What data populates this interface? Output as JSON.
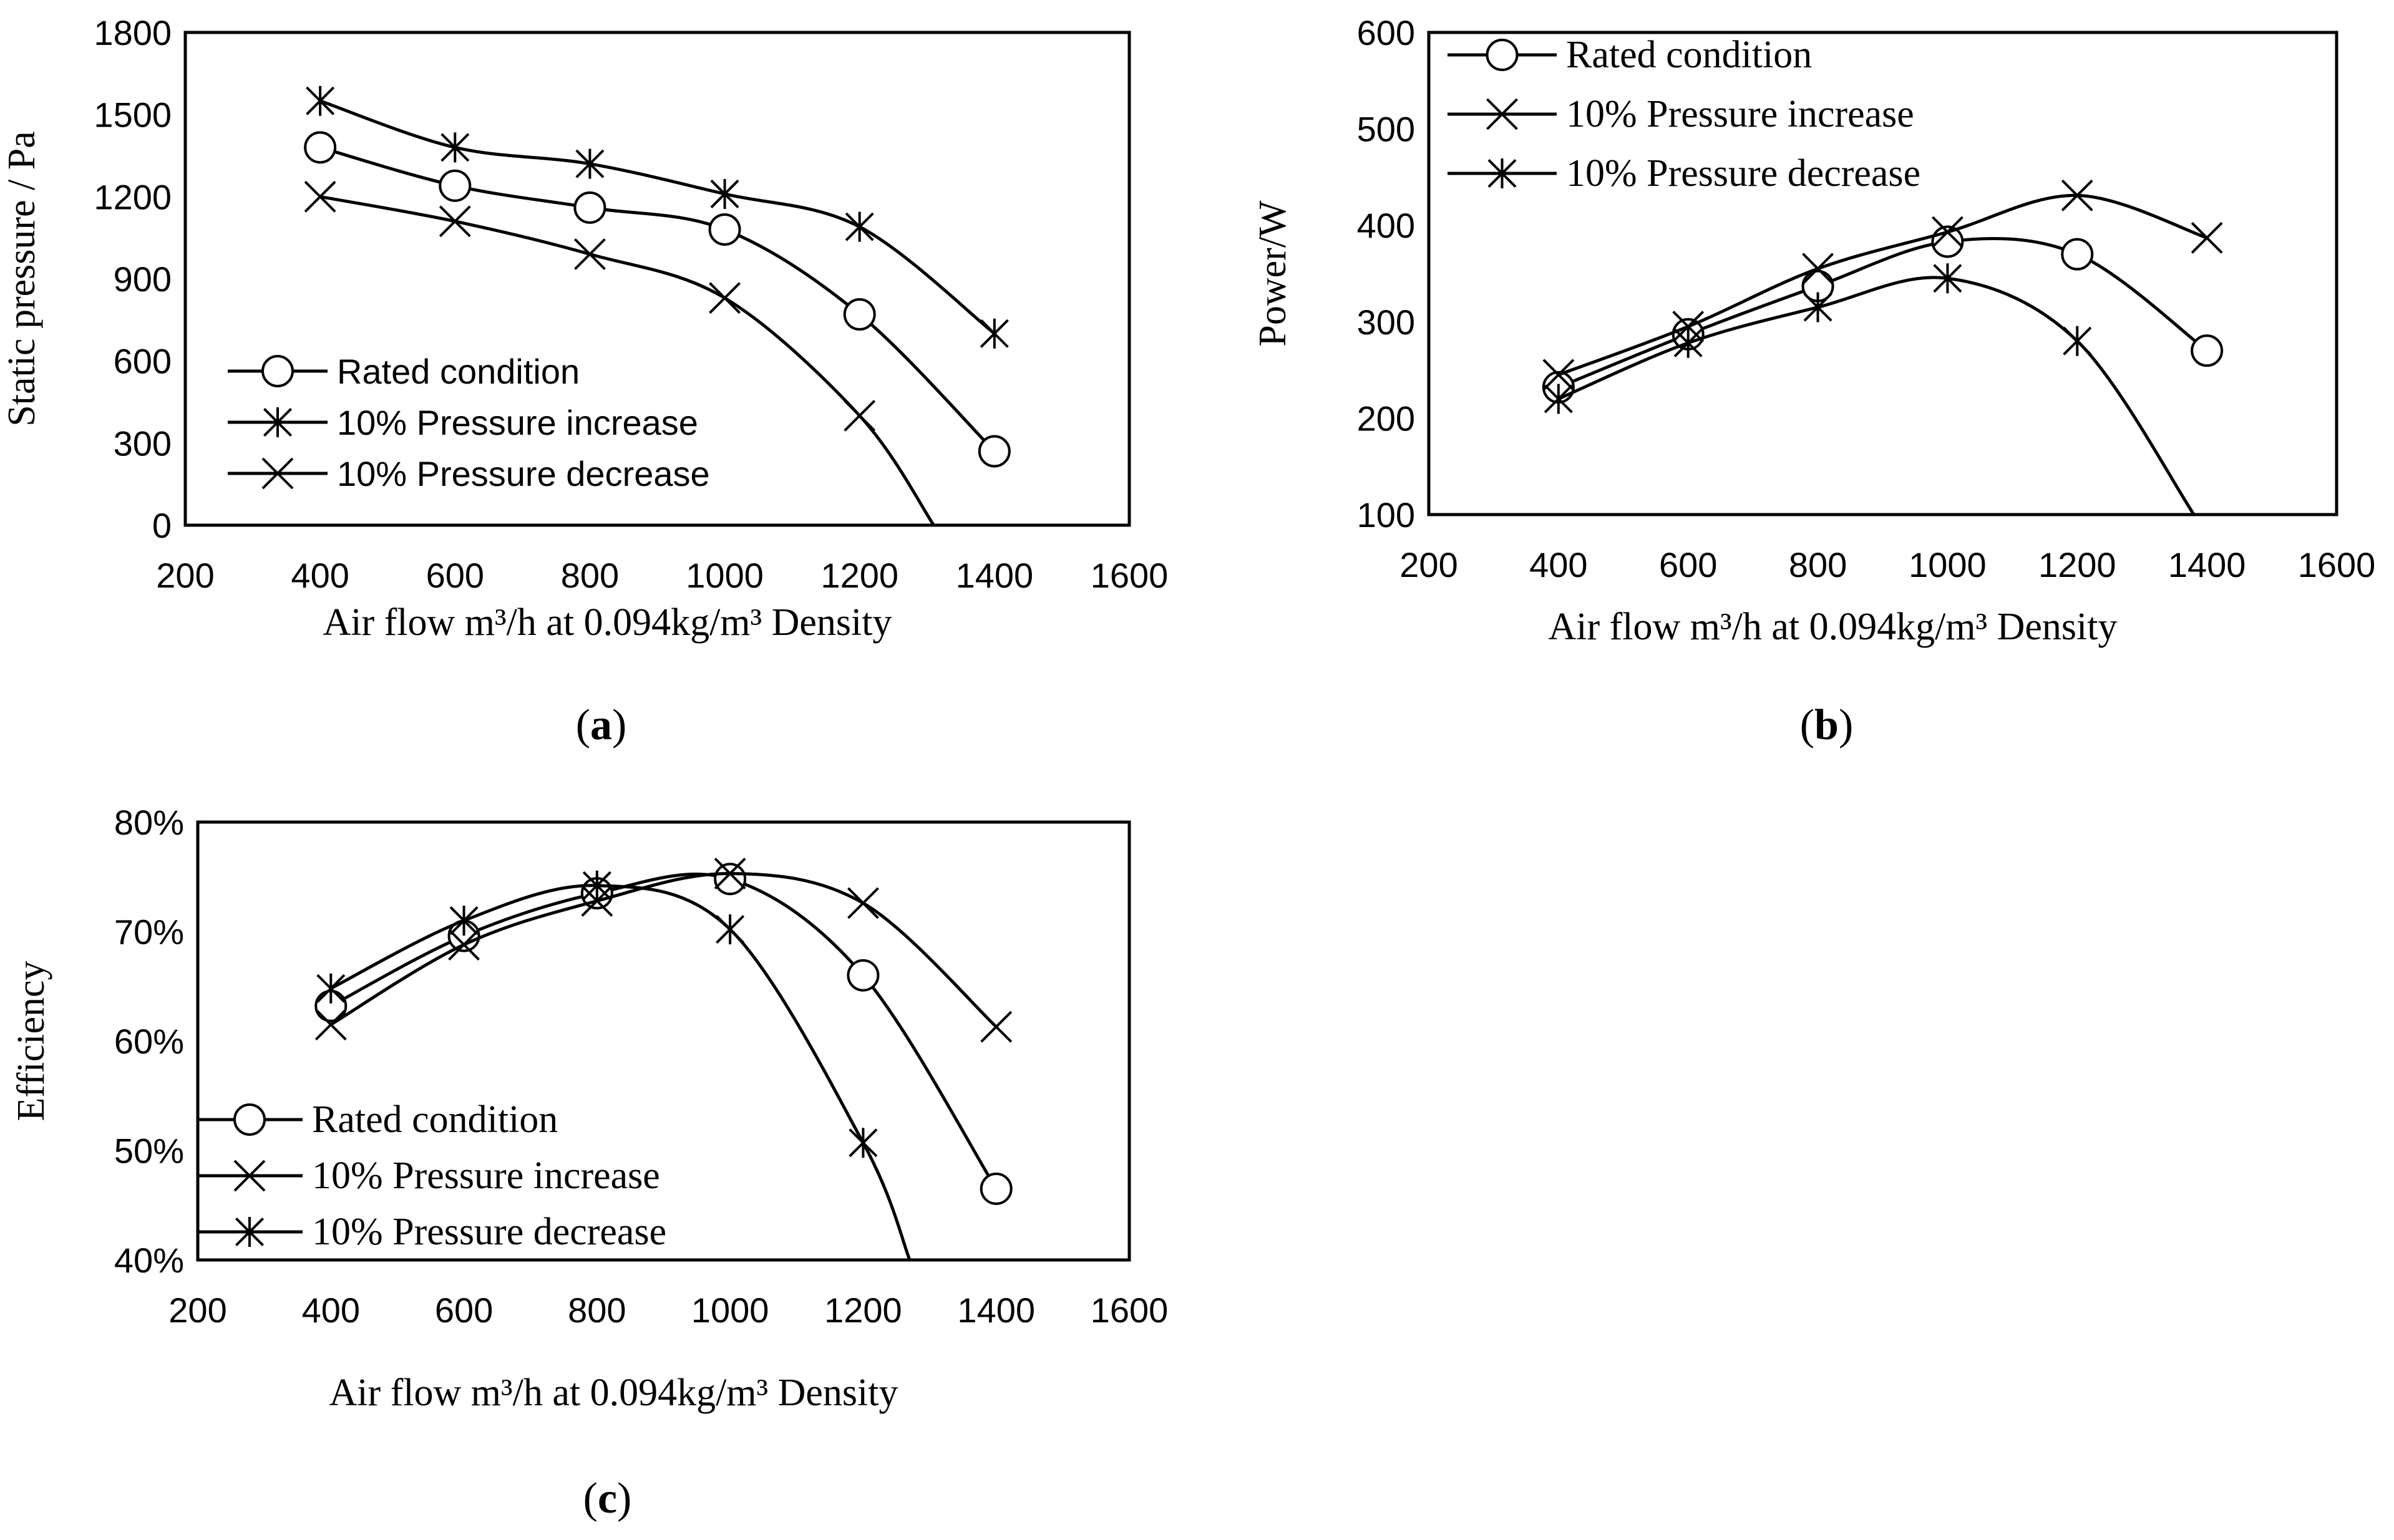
{
  "chart_data": [
    {
      "id": "a",
      "type": "line",
      "caption": "(a)",
      "caption_letter": "a",
      "xlabel": "Air flow  m³/h at 0.094kg/m³ Density",
      "ylabel": "Static pressure / Pa",
      "xlim": [
        200,
        1600
      ],
      "ylim": [
        0,
        1800
      ],
      "xticks": [
        200,
        400,
        600,
        800,
        1000,
        1200,
        1400,
        1600
      ],
      "yticks": [
        0,
        300,
        600,
        900,
        1200,
        1500,
        1800
      ],
      "ytick_labels": [
        "0",
        "300",
        "600",
        "900",
        "1200",
        "1500",
        "1800"
      ],
      "legend_position": "bottom-left",
      "series": [
        {
          "name": "Rated condition",
          "marker": "circle",
          "x": [
            400,
            600,
            800,
            1000,
            1200,
            1400
          ],
          "values": [
            1380,
            1240,
            1160,
            1080,
            770,
            270
          ]
        },
        {
          "name": "10% Pressure increase",
          "marker": "asterisk",
          "x": [
            400,
            600,
            800,
            1000,
            1200,
            1400
          ],
          "values": [
            1550,
            1380,
            1320,
            1210,
            1090,
            700
          ]
        },
        {
          "name": "10% Pressure decrease",
          "marker": "x",
          "x": [
            400,
            600,
            800,
            1000,
            1200,
            1310
          ],
          "values": [
            1200,
            1110,
            990,
            830,
            400,
            0
          ]
        }
      ]
    },
    {
      "id": "b",
      "type": "line",
      "caption": "(b)",
      "caption_letter": "b",
      "xlabel": "Air flow  m³/h at 0.094kg/m³ Density",
      "ylabel": "Power/W",
      "xlim": [
        200,
        1600
      ],
      "ylim": [
        100,
        600
      ],
      "xticks": [
        200,
        400,
        600,
        800,
        1000,
        1200,
        1400,
        1600
      ],
      "yticks": [
        100,
        200,
        300,
        400,
        500,
        600
      ],
      "ytick_labels": [
        "100",
        "200",
        "300",
        "400",
        "500",
        "600"
      ],
      "legend_position": "top-left",
      "series": [
        {
          "name": "Rated condition",
          "marker": "circle",
          "x": [
            400,
            600,
            800,
            1000,
            1200,
            1400
          ],
          "values": [
            232,
            287,
            337,
            383,
            370,
            270
          ]
        },
        {
          "name": "10% Pressure increase",
          "marker": "x",
          "x": [
            400,
            600,
            800,
            1000,
            1200,
            1400
          ],
          "values": [
            245,
            295,
            355,
            393,
            431,
            387
          ]
        },
        {
          "name": "10% Pressure decrease",
          "marker": "asterisk",
          "x": [
            400,
            600,
            800,
            1000,
            1200,
            1380
          ],
          "values": [
            220,
            278,
            315,
            345,
            280,
            100
          ]
        }
      ]
    },
    {
      "id": "c",
      "type": "line",
      "caption": "(c)",
      "caption_letter": "c",
      "xlabel": "Air flow  m³/h at 0.094kg/m³ Density",
      "ylabel": "Efficiency",
      "xlim": [
        200,
        1600
      ],
      "ylim": [
        40,
        80
      ],
      "xticks": [
        200,
        400,
        600,
        800,
        1000,
        1200,
        1400,
        1600
      ],
      "yticks": [
        40,
        50,
        60,
        70,
        80
      ],
      "ytick_labels": [
        "40%",
        "50%",
        "60%",
        "70%",
        "80%"
      ],
      "legend_position": "bottom-left",
      "series": [
        {
          "name": "Rated condition",
          "marker": "circle",
          "x": [
            400,
            600,
            800,
            1000,
            1200,
            1400
          ],
          "values": [
            63.2,
            69.6,
            73.5,
            74.8,
            66.0,
            46.5
          ]
        },
        {
          "name": "10% Pressure increase",
          "marker": "x",
          "x": [
            400,
            600,
            800,
            1000,
            1200,
            1400
          ],
          "values": [
            61.5,
            68.8,
            72.8,
            75.3,
            72.6,
            61.3
          ]
        },
        {
          "name": "10% Pressure decrease",
          "marker": "asterisk",
          "x": [
            400,
            600,
            800,
            1000,
            1200,
            1270
          ],
          "values": [
            64.8,
            71.0,
            74.2,
            70.2,
            50.7,
            40.0
          ]
        }
      ]
    }
  ]
}
